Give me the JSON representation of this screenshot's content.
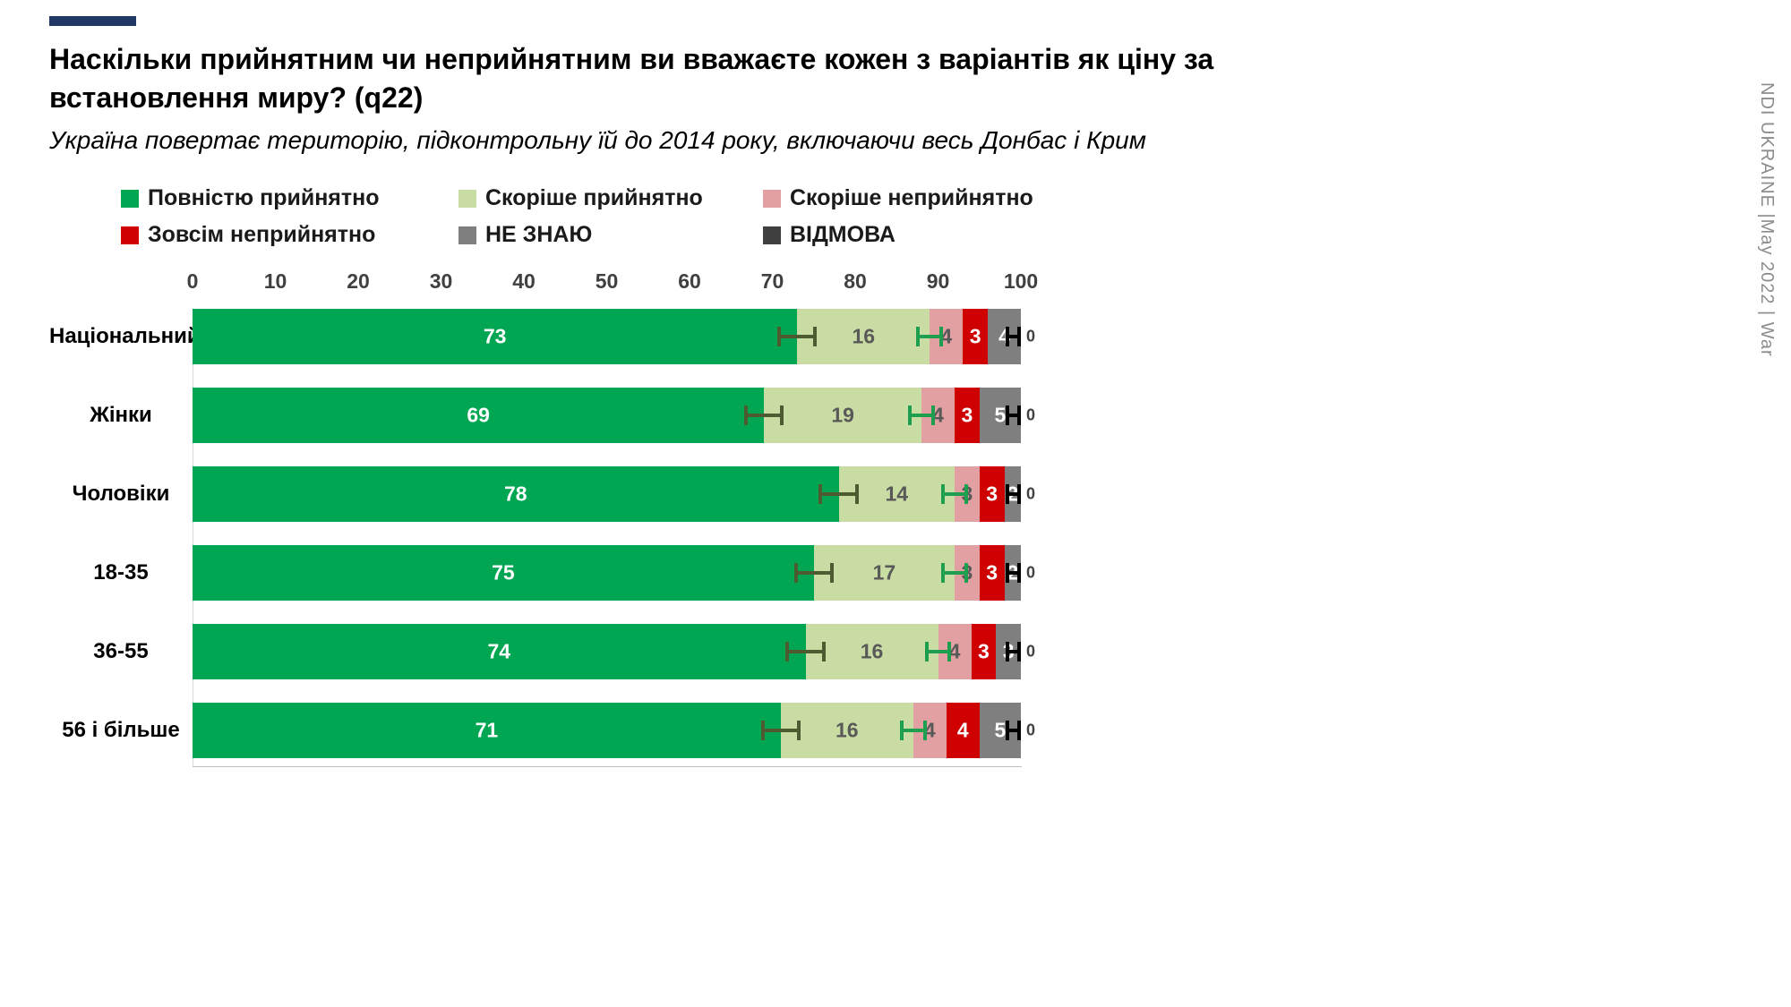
{
  "page": {
    "title": "Наскільки прийнятним чи неприйнятним ви вважаєте кожен з варіантів як ціну за встановлення миру? (q22)",
    "subtitle": "Україна повертає територію, підконтрольну їй до 2014 року, включаючи весь Донбас і Крим",
    "side_text": "NDI UKRAINE |May 2022 | War",
    "accent_color": "#1f3864"
  },
  "chart_data": {
    "type": "bar",
    "stacked": true,
    "orientation": "horizontal",
    "xlim": [
      0,
      100
    ],
    "x_ticks": [
      0,
      10,
      20,
      30,
      40,
      50,
      60,
      70,
      80,
      90,
      100
    ],
    "legend_position": "top",
    "categories": [
      "Національний",
      "Жінки",
      "Чоловіки",
      "18-35",
      "36-55",
      "56 і більше"
    ],
    "series": [
      {
        "name": "Повністю прийнятно",
        "color": "#00A651",
        "label_color": "#ffffff",
        "values": [
          73,
          69,
          78,
          75,
          74,
          71
        ]
      },
      {
        "name": "Скоріше прийнятно",
        "color": "#C9DCA3",
        "label_color": "#595959",
        "values": [
          16,
          19,
          14,
          17,
          16,
          16
        ]
      },
      {
        "name": "Скоріше неприйнятно",
        "color": "#E3A0A3",
        "label_color": "#595959",
        "values": [
          4,
          4,
          3,
          3,
          4,
          4
        ]
      },
      {
        "name": "Зовсім неприйнятно",
        "color": "#CE0000",
        "label_color": "#ffffff",
        "values": [
          3,
          3,
          3,
          3,
          3,
          4
        ]
      },
      {
        "name": "НЕ ЗНАЮ",
        "color": "#7F7F7F",
        "label_color": "#ffffff",
        "values": [
          4,
          5,
          2,
          2,
          3,
          5
        ]
      },
      {
        "name": "ВІДМОВА",
        "color": "#404040",
        "label_color": "#ffffff",
        "values": [
          0,
          0,
          0,
          0,
          0,
          0
        ]
      }
    ],
    "error_bars": {
      "boundaries_after_series": [
        0,
        1,
        5
      ],
      "halfwidths": [
        2.4,
        1.6,
        0.9
      ],
      "colors": [
        "#4e5b31",
        "#1e9e4f",
        "#000000"
      ]
    }
  }
}
